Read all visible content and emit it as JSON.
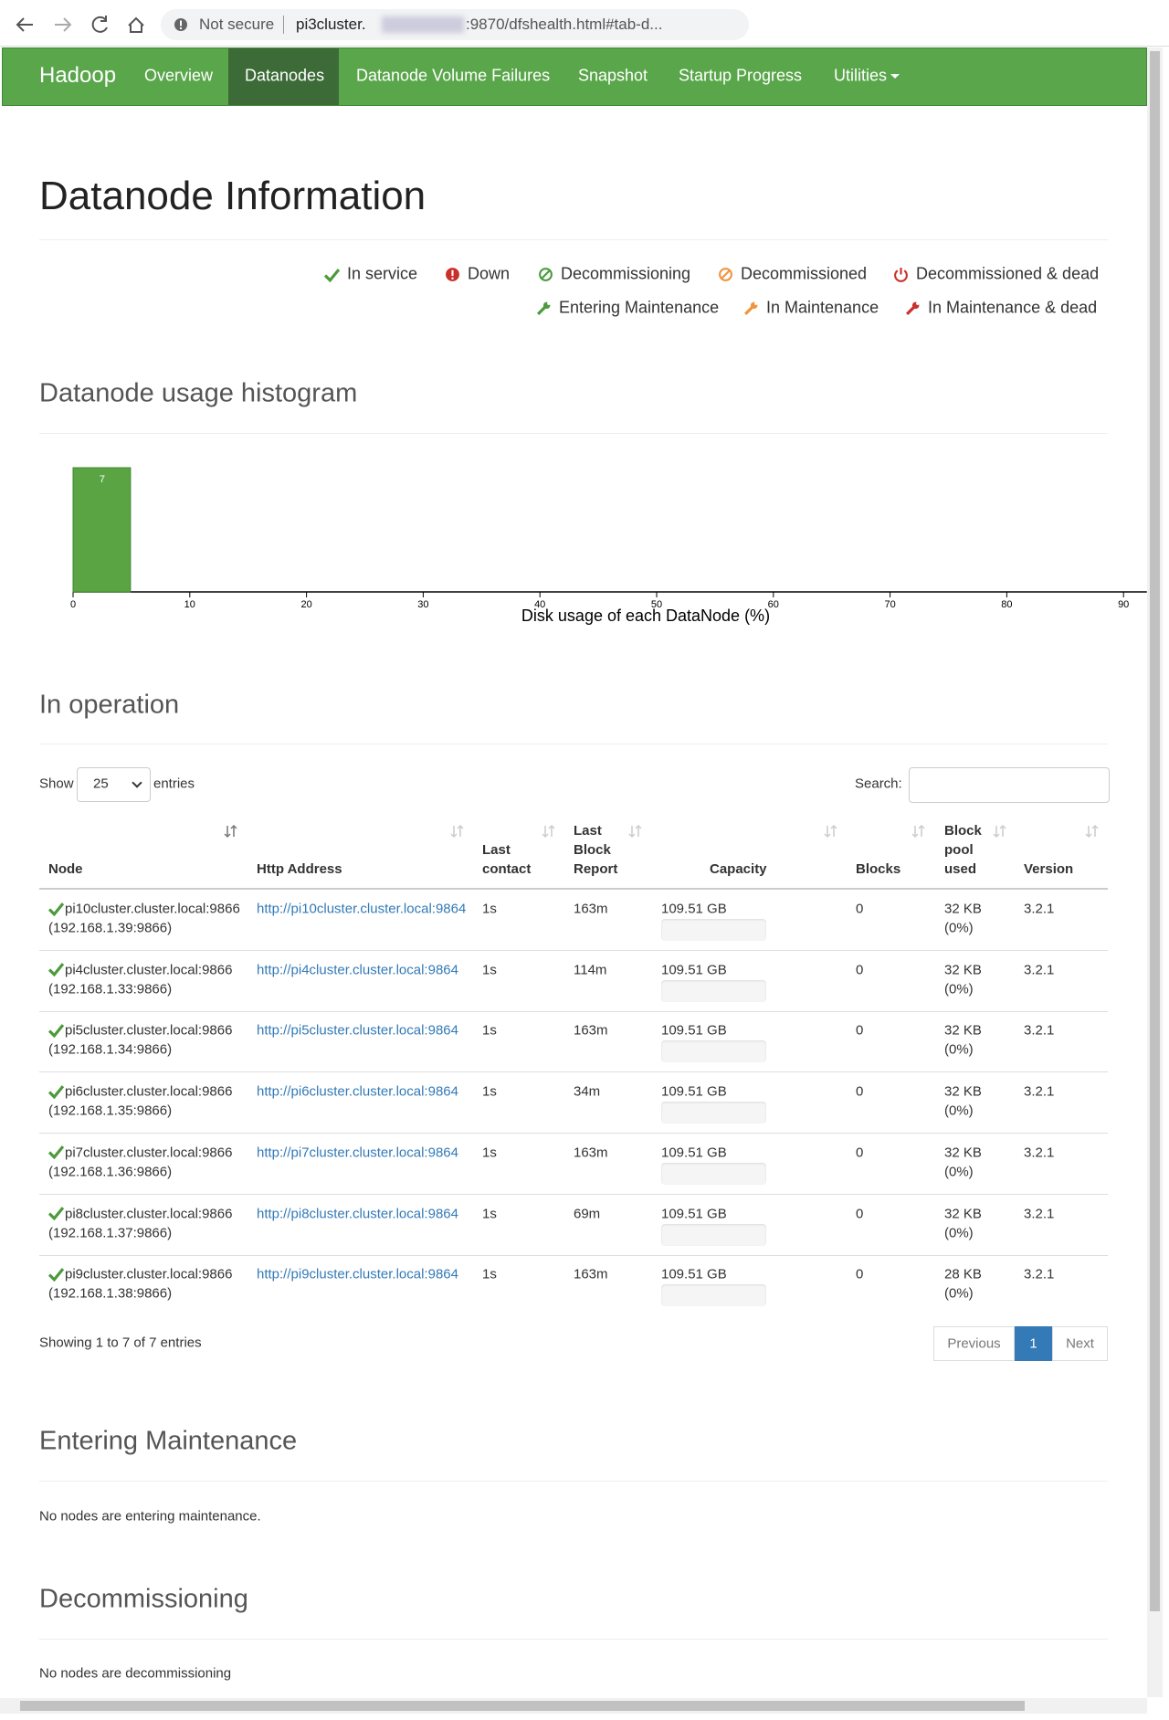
{
  "browser": {
    "security": "Not secure",
    "url_host": "pi3cluster.",
    "url_path": ":9870/dfshealth.html#tab-d..."
  },
  "nav": {
    "brand": "Hadoop",
    "items": [
      "Overview",
      "Datanodes",
      "Datanode Volume Failures",
      "Snapshot",
      "Startup Progress",
      "Utilities"
    ]
  },
  "title": "Datanode Information",
  "legend": [
    "In service",
    "Down",
    "Decommissioning",
    "Decommissioned",
    "Decommissioned & dead",
    "Entering Maintenance",
    "In Maintenance",
    "In Maintenance & dead"
  ],
  "histogram_heading": "Datanode usage histogram",
  "chart_data": {
    "type": "histogram",
    "bins": [
      0,
      5
    ],
    "counts": [
      7
    ],
    "color": "#5ba444",
    "xlabel": "Disk usage of each DataNode (%)",
    "xlim": [
      0,
      92
    ],
    "xticks": [
      0,
      10,
      20,
      30,
      40,
      50,
      60,
      70,
      80,
      90
    ]
  },
  "operation": {
    "heading": "In operation",
    "show": "Show",
    "page_length": "25",
    "entries": "entries",
    "search": "Search:",
    "columns": [
      "Node",
      "Http Address",
      "Last contact",
      "Last Block Report",
      "Capacity",
      "Blocks",
      "Block pool used",
      "Version"
    ],
    "rows": [
      {
        "node": "pi10cluster.cluster.local:9866",
        "ip": "(192.168.1.39:9866)",
        "http": "http://pi10cluster.cluster.local:9864",
        "contact": "1s",
        "report": "163m",
        "capacity": "109.51 GB",
        "blocks": "0",
        "pool": "32 KB",
        "pool_pct": "(0%)",
        "version": "3.2.1"
      },
      {
        "node": "pi4cluster.cluster.local:9866",
        "ip": "(192.168.1.33:9866)",
        "http": "http://pi4cluster.cluster.local:9864",
        "contact": "1s",
        "report": "114m",
        "capacity": "109.51 GB",
        "blocks": "0",
        "pool": "32 KB",
        "pool_pct": "(0%)",
        "version": "3.2.1"
      },
      {
        "node": "pi5cluster.cluster.local:9866",
        "ip": "(192.168.1.34:9866)",
        "http": "http://pi5cluster.cluster.local:9864",
        "contact": "1s",
        "report": "163m",
        "capacity": "109.51 GB",
        "blocks": "0",
        "pool": "32 KB",
        "pool_pct": "(0%)",
        "version": "3.2.1"
      },
      {
        "node": "pi6cluster.cluster.local:9866",
        "ip": "(192.168.1.35:9866)",
        "http": "http://pi6cluster.cluster.local:9864",
        "contact": "1s",
        "report": "34m",
        "capacity": "109.51 GB",
        "blocks": "0",
        "pool": "32 KB",
        "pool_pct": "(0%)",
        "version": "3.2.1"
      },
      {
        "node": "pi7cluster.cluster.local:9866",
        "ip": "(192.168.1.36:9866)",
        "http": "http://pi7cluster.cluster.local:9864",
        "contact": "1s",
        "report": "163m",
        "capacity": "109.51 GB",
        "blocks": "0",
        "pool": "32 KB",
        "pool_pct": "(0%)",
        "version": "3.2.1"
      },
      {
        "node": "pi8cluster.cluster.local:9866",
        "ip": "(192.168.1.37:9866)",
        "http": "http://pi8cluster.cluster.local:9864",
        "contact": "1s",
        "report": "69m",
        "capacity": "109.51 GB",
        "blocks": "0",
        "pool": "32 KB",
        "pool_pct": "(0%)",
        "version": "3.2.1"
      },
      {
        "node": "pi9cluster.cluster.local:9866",
        "ip": "(192.168.1.38:9866)",
        "http": "http://pi9cluster.cluster.local:9864",
        "contact": "1s",
        "report": "163m",
        "capacity": "109.51 GB",
        "blocks": "0",
        "pool": "28 KB",
        "pool_pct": "(0%)",
        "version": "3.2.1"
      }
    ],
    "info": "Showing 1 to 7 of 7 entries",
    "pagination": [
      "Previous",
      "1",
      "Next"
    ]
  },
  "maintenance": {
    "heading": "Entering Maintenance",
    "text": "No nodes are entering maintenance."
  },
  "decommissioning": {
    "heading": "Decommissioning",
    "text": "No nodes are decommissioning"
  }
}
